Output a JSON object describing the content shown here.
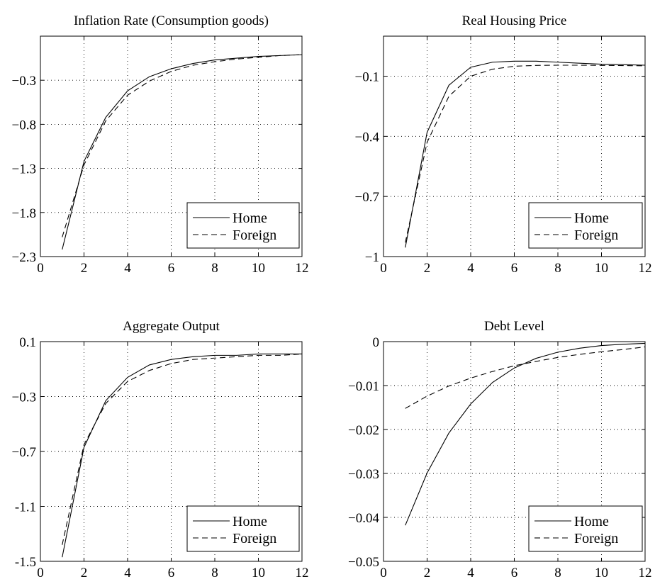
{
  "chart_data": [
    {
      "type": "line",
      "title": "Inflation Rate (Consumption goods)",
      "xlim": [
        0,
        12
      ],
      "ylim": [
        -2.3,
        0.2
      ],
      "xticks": [
        0,
        2,
        4,
        6,
        8,
        10,
        12
      ],
      "yticks": [
        -2.3,
        -1.8,
        -1.3,
        -0.8,
        -0.3
      ],
      "ytick_labels": [
        "−2.3",
        "−1.8",
        "−1.3",
        "−0.8",
        "−0.3"
      ],
      "grid": true,
      "legend_position": "bottom-right",
      "x": [
        1,
        2,
        3,
        4,
        5,
        6,
        7,
        8,
        9,
        10,
        11,
        12
      ],
      "series": [
        {
          "name": "Home",
          "style": "solid",
          "values": [
            -2.22,
            -1.22,
            -0.72,
            -0.42,
            -0.26,
            -0.17,
            -0.11,
            -0.07,
            -0.05,
            -0.03,
            -0.02,
            -0.01
          ]
        },
        {
          "name": "Foreign",
          "style": "dashed",
          "values": [
            -2.08,
            -1.26,
            -0.76,
            -0.47,
            -0.31,
            -0.2,
            -0.13,
            -0.09,
            -0.06,
            -0.04,
            -0.02,
            -0.01
          ]
        }
      ]
    },
    {
      "type": "line",
      "title": "Real Housing Price",
      "xlim": [
        0,
        12
      ],
      "ylim": [
        -1,
        0.1
      ],
      "xticks": [
        0,
        2,
        4,
        6,
        8,
        10,
        12
      ],
      "yticks": [
        -1,
        -0.7,
        -0.4,
        -0.1
      ],
      "ytick_labels": [
        "−1",
        "−0.7",
        "−0.4",
        "−0.1"
      ],
      "grid": true,
      "legend_position": "bottom-right",
      "x": [
        1,
        2,
        3,
        4,
        5,
        6,
        7,
        8,
        9,
        10,
        11,
        12
      ],
      "series": [
        {
          "name": "Home",
          "style": "solid",
          "values": [
            -0.955,
            -0.38,
            -0.145,
            -0.055,
            -0.03,
            -0.025,
            -0.025,
            -0.03,
            -0.035,
            -0.04,
            -0.042,
            -0.045
          ]
        },
        {
          "name": "Foreign",
          "style": "dashed",
          "values": [
            -0.93,
            -0.43,
            -0.2,
            -0.1,
            -0.065,
            -0.05,
            -0.046,
            -0.045,
            -0.045,
            -0.046,
            -0.047,
            -0.048
          ]
        }
      ]
    },
    {
      "type": "line",
      "title": "Aggregate Output",
      "xlim": [
        0,
        12
      ],
      "ylim": [
        -1.5,
        0.1
      ],
      "xticks": [
        0,
        2,
        4,
        6,
        8,
        10,
        12
      ],
      "yticks": [
        -1.5,
        -1.1,
        -0.7,
        -0.3,
        0.1
      ],
      "ytick_labels": [
        "-1.5",
        "-1.1",
        "−0.7",
        "−0.3",
        "0.1"
      ],
      "grid": true,
      "legend_position": "bottom-right",
      "x": [
        1,
        2,
        3,
        4,
        5,
        6,
        7,
        8,
        9,
        10,
        11,
        12
      ],
      "series": [
        {
          "name": "Home",
          "style": "solid",
          "values": [
            -1.47,
            -0.67,
            -0.33,
            -0.16,
            -0.07,
            -0.03,
            -0.01,
            0.0,
            0.0,
            0.01,
            0.01,
            0.01
          ]
        },
        {
          "name": "Foreign",
          "style": "dashed",
          "values": [
            -1.38,
            -0.65,
            -0.35,
            -0.19,
            -0.11,
            -0.06,
            -0.03,
            -0.02,
            -0.01,
            0.0,
            0.0,
            0.01
          ]
        }
      ]
    },
    {
      "type": "line",
      "title": "Debt Level",
      "xlim": [
        0,
        12
      ],
      "ylim": [
        -0.05,
        0
      ],
      "xticks": [
        0,
        2,
        4,
        6,
        8,
        10,
        12
      ],
      "yticks": [
        -0.05,
        -0.04,
        -0.03,
        -0.02,
        -0.01,
        0
      ],
      "ytick_labels": [
        "−0.05",
        "−0.04",
        "−0.03",
        "−0.02",
        "−0.01",
        "0"
      ],
      "grid": true,
      "legend_position": "bottom-right",
      "x": [
        1,
        2,
        3,
        4,
        5,
        6,
        7,
        8,
        9,
        10,
        11,
        12
      ],
      "series": [
        {
          "name": "Home",
          "style": "solid",
          "values": [
            -0.0418,
            -0.0299,
            -0.0208,
            -0.0142,
            -0.0093,
            -0.006,
            -0.0038,
            -0.0024,
            -0.0015,
            -0.0009,
            -0.0006,
            -0.0004
          ]
        },
        {
          "name": "Foreign",
          "style": "dashed",
          "values": [
            -0.0152,
            -0.0124,
            -0.0101,
            -0.0083,
            -0.0068,
            -0.0055,
            -0.0045,
            -0.0036,
            -0.0029,
            -0.0023,
            -0.0018,
            -0.0012
          ]
        }
      ]
    }
  ]
}
